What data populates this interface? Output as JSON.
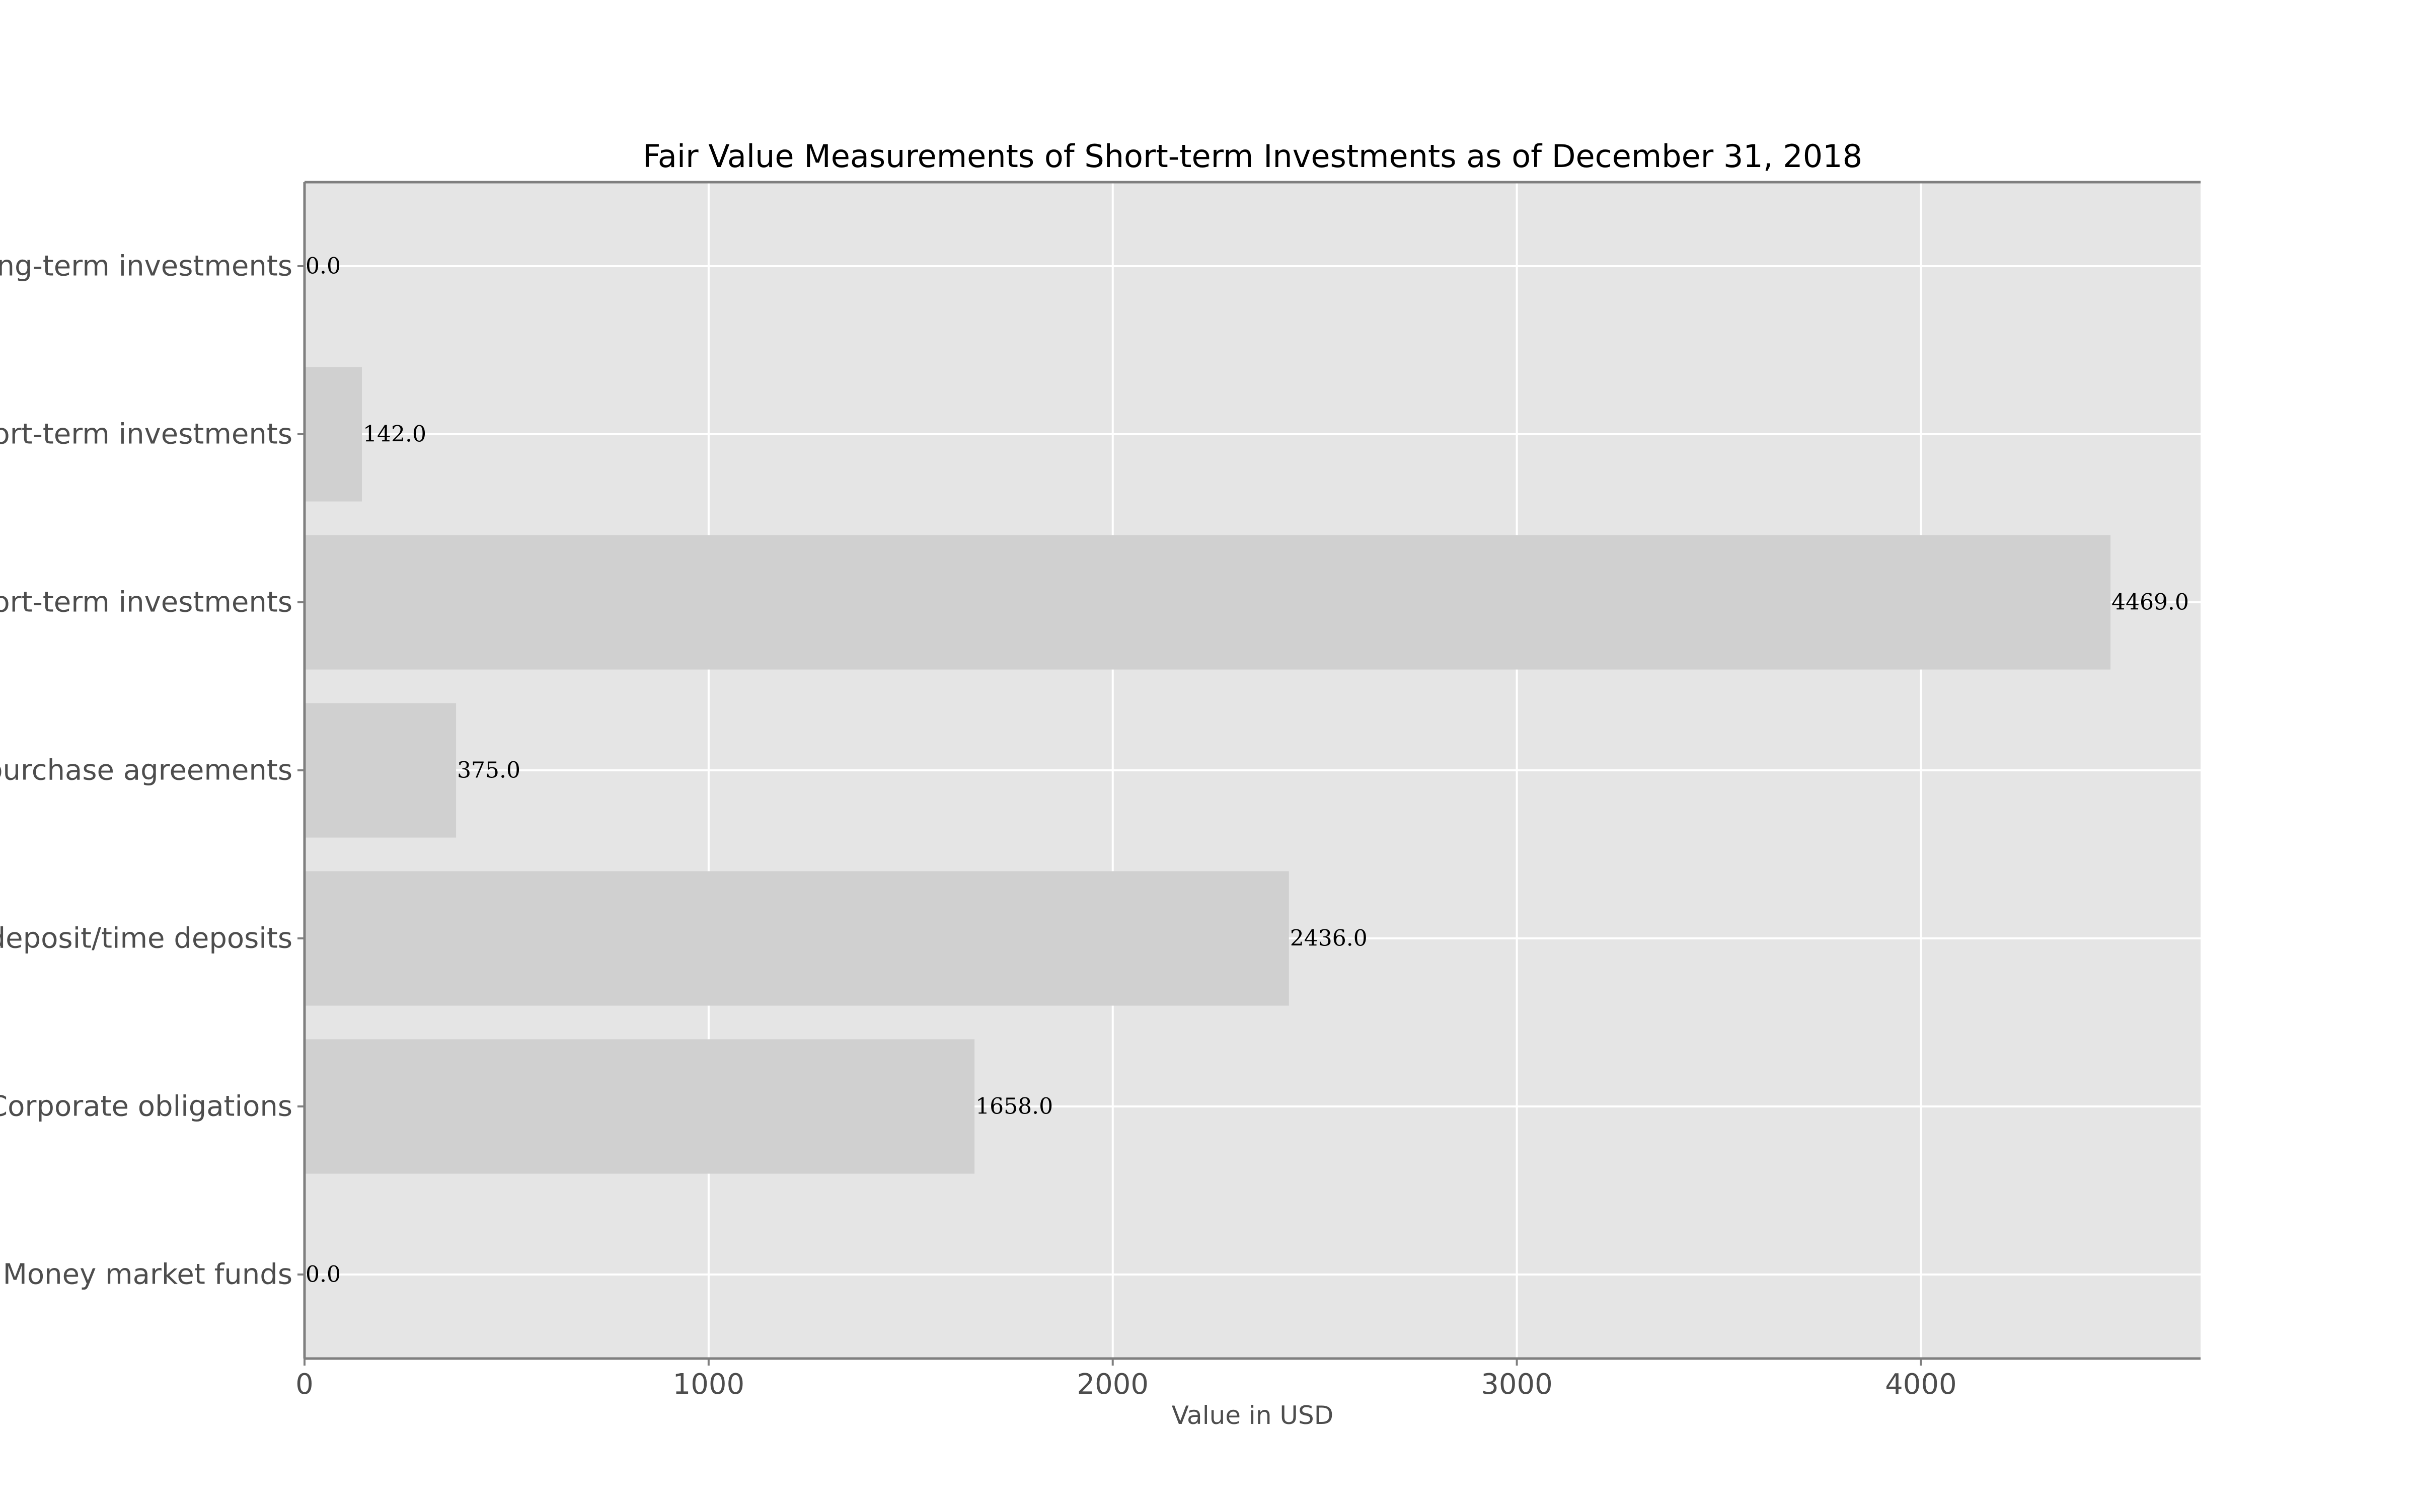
{
  "chart_data": {
    "type": "bar",
    "orientation": "horizontal",
    "title": "Fair Value Measurements of Short-term Investments as of December 31, 2018",
    "xlabel": "Value in USD",
    "ylabel": "",
    "xlim": [
      0,
      4692
    ],
    "x_ticks": [
      0,
      1000,
      2000,
      3000,
      4000
    ],
    "categories": [
      "Money market funds",
      "Corporate obligations",
      "Certificates of deposit/time deposits",
      "Repurchase agreements",
      "Total short-term investments",
      "Other short-term investments",
      "Long-term investments"
    ],
    "visible_category_labels": [
      "Money market funds",
      "Corporate obligations",
      "deposit/time deposits",
      "purchase agreements",
      "ort-term investments",
      "ort-term investments",
      "ong-term investments"
    ],
    "values": [
      0.0,
      1658.0,
      2436.0,
      375.0,
      4469.0,
      142.0,
      0.0
    ],
    "value_labels": [
      "0.0",
      "1658.0",
      "2436.0",
      "375.0",
      "4469.0",
      "142.0",
      "0.0"
    ],
    "grid": true,
    "legend": "none"
  },
  "colors": {
    "background": "#ffffff",
    "plot_background": "#e5e5e5",
    "bar": "#d0d0d0",
    "grid": "#ffffff",
    "spine": "#7f7f7f",
    "text": "#4d4d4d",
    "title": "#000000"
  }
}
